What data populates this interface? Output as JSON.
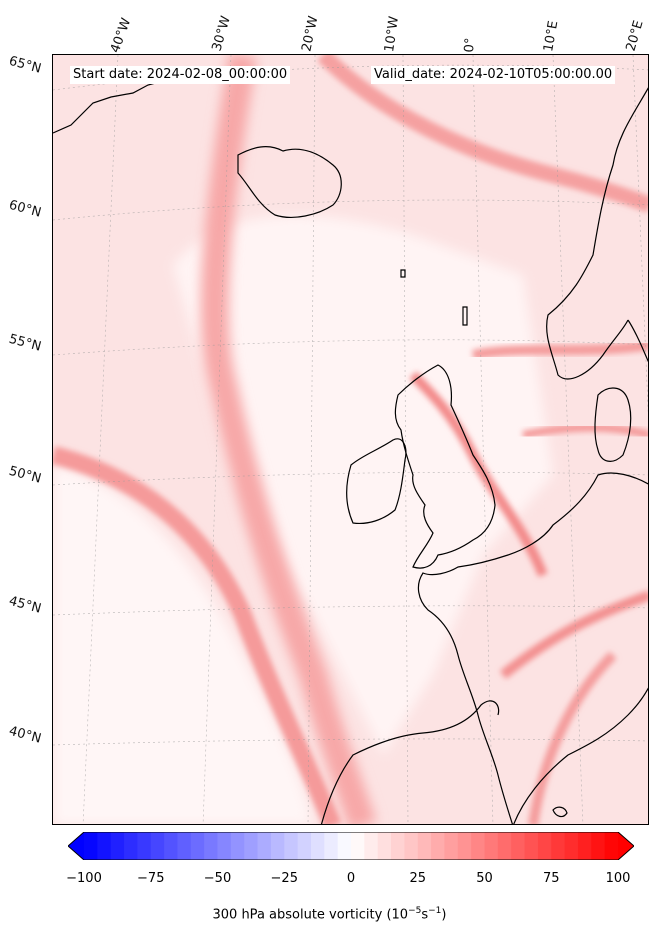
{
  "header": {
    "start_date": "Start date: 2024-02-08_00:00:00",
    "valid_date": "Valid_date: 2024-02-10T05:00:00.00"
  },
  "longitude_labels": [
    "40°W",
    "30°W",
    "20°W",
    "10°W",
    "0°",
    "10°E",
    "20°E"
  ],
  "latitude_labels": [
    "65°N",
    "60°N",
    "55°N",
    "50°N",
    "45°N",
    "40°N"
  ],
  "colorbar": {
    "label_main": "300 hPa absolute vorticity (10",
    "label_exp1": "−5",
    "label_mid": "s",
    "label_exp2": "−1",
    "label_end": ")",
    "ticks": [
      "−100",
      "−75",
      "−50",
      "−25",
      "0",
      "25",
      "50",
      "75",
      "100"
    ],
    "min": -100,
    "max": 100,
    "colors": {
      "negative": "#0000ff",
      "zero": "#ffffff",
      "positive": "#ff0000"
    }
  },
  "colors": {
    "coastline": "#000000",
    "background_field": "#fde9e9",
    "jet_streak": "#f7a3a3"
  }
}
